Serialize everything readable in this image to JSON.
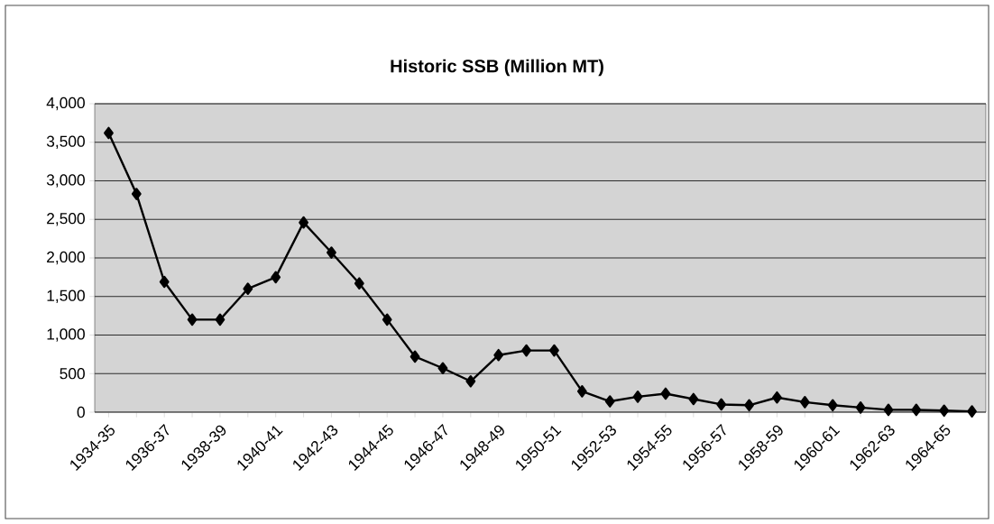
{
  "chart_data": {
    "type": "line",
    "title": "Historic SSB (Million MT)",
    "categories": [
      "1934-35",
      null,
      "1936-37",
      null,
      "1938-39",
      null,
      "1940-41",
      null,
      "1942-43",
      null,
      "1944-45",
      null,
      "1946-47",
      null,
      "1948-49",
      null,
      "1950-51",
      null,
      "1952-53",
      null,
      "1954-55",
      null,
      "1956-57",
      null,
      "1958-59",
      null,
      "1960-61",
      null,
      "1962-63",
      null,
      "1964-65",
      null
    ],
    "values": [
      3620,
      2830,
      1690,
      1200,
      1200,
      1600,
      1750,
      2460,
      2070,
      1670,
      1200,
      720,
      570,
      400,
      740,
      800,
      800,
      270,
      140,
      200,
      240,
      170,
      100,
      90,
      190,
      130,
      90,
      60,
      30,
      30,
      20,
      10
    ],
    "color": "#000000",
    "ylim": [
      0,
      4000
    ],
    "yticks": [
      0,
      500,
      {
        "value": 1000,
        "label": "1,000"
      },
      {
        "value": 1500,
        "label": "1,500"
      },
      {
        "value": 2000,
        "label": "2,000"
      },
      {
        "value": 2500,
        "label": "2,500"
      },
      {
        "value": 3000,
        "label": "3,000"
      },
      {
        "value": 3500,
        "label": "3,500"
      },
      {
        "value": 4000,
        "label": "4,000"
      }
    ],
    "grid": "y",
    "marker": "diamond",
    "line_style": "solid"
  }
}
